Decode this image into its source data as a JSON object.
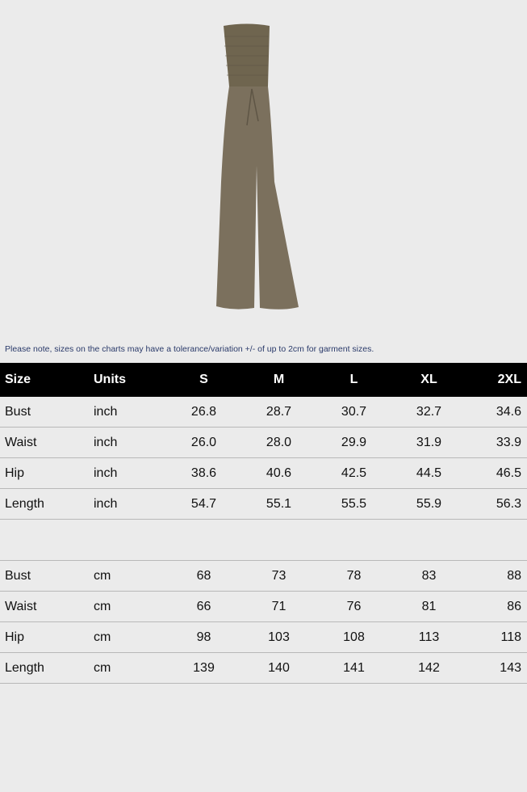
{
  "product": {
    "image": "strapless smocked wide-leg jumpsuit",
    "color": "#7b705d"
  },
  "note": "Please note, sizes on the charts may have a tolerance/variation +/- of up to 2cm for garment sizes.",
  "header": [
    "Size",
    "Units",
    "S",
    "M",
    "L",
    "XL",
    "2XL"
  ],
  "inch_rows": [
    [
      "Bust",
      "inch",
      "26.8",
      "28.7",
      "30.7",
      "32.7",
      "34.6"
    ],
    [
      "Waist",
      "inch",
      "26.0",
      "28.0",
      "29.9",
      "31.9",
      "33.9"
    ],
    [
      "Hip",
      "inch",
      "38.6",
      "40.6",
      "42.5",
      "44.5",
      "46.5"
    ],
    [
      "Length",
      "inch",
      "54.7",
      "55.1",
      "55.5",
      "55.9",
      "56.3"
    ]
  ],
  "cm_rows": [
    [
      "Bust",
      "cm",
      "68",
      "73",
      "78",
      "83",
      "88"
    ],
    [
      "Waist",
      "cm",
      "66",
      "71",
      "76",
      "81",
      "86"
    ],
    [
      "Hip",
      "cm",
      "98",
      "103",
      "108",
      "113",
      "118"
    ],
    [
      "Length",
      "cm",
      "139",
      "140",
      "141",
      "142",
      "143"
    ]
  ]
}
